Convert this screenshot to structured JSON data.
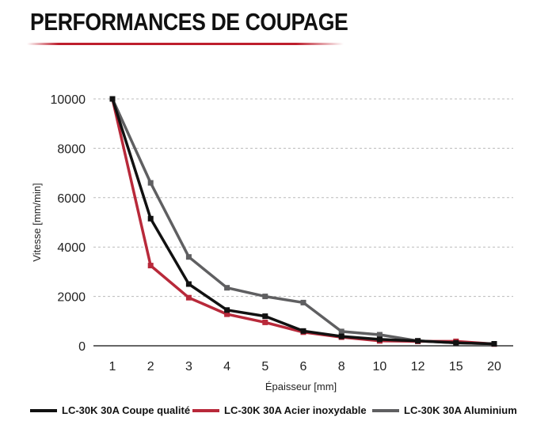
{
  "title": "PERFORMANCES DE COUPAGE",
  "colors": {
    "title_rule": "#be1e2d",
    "axis": "#333333",
    "grid": "#bbbbbb"
  },
  "chart_data": {
    "type": "line",
    "xlabel": "Épaisseur [mm]",
    "ylabel": "Vitesse [mm/min]",
    "categories": [
      "1",
      "2",
      "3",
      "4",
      "5",
      "6",
      "8",
      "10",
      "12",
      "15",
      "20"
    ],
    "ylim": [
      0,
      10000
    ],
    "yticks": [
      0,
      2000,
      4000,
      6000,
      8000,
      10000
    ],
    "grid": "horizontal dashed",
    "legend_position": "bottom",
    "series": [
      {
        "name": "LC-30K 30A Coupe qualité",
        "color": "#111111",
        "values": [
          10000,
          5150,
          2500,
          1450,
          1200,
          600,
          380,
          260,
          200,
          120,
          80
        ]
      },
      {
        "name": "LC-30K 30A Acier inoxydable",
        "color": "#b8293a",
        "values": [
          10000,
          3250,
          1950,
          1280,
          950,
          550,
          350,
          200,
          180,
          180,
          70
        ]
      },
      {
        "name": "LC-30K 30A Aluminium",
        "color": "#5f5f61",
        "values": [
          10000,
          6600,
          3600,
          2350,
          2000,
          1750,
          580,
          450,
          200,
          120,
          80
        ]
      }
    ]
  }
}
